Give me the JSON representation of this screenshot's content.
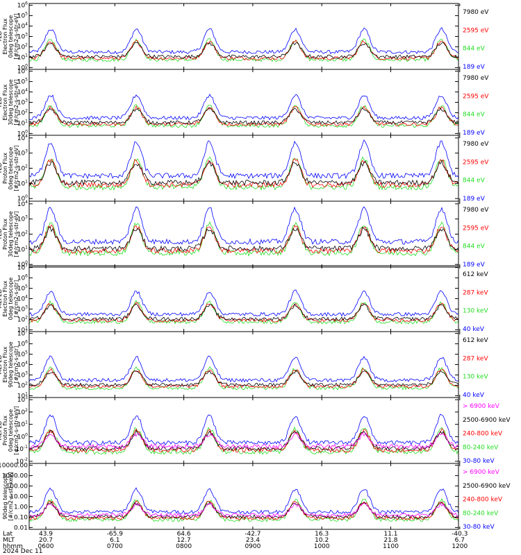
{
  "colors": {
    "black": "#000000",
    "red": "#ff0000",
    "green": "#22dd22",
    "blue": "#0000ff",
    "magenta": "#ff00ff"
  },
  "chart_data": {
    "type": "line",
    "x_axis": {
      "rows": [
        {
          "label": "Lat",
          "ticks": [
            "43.9",
            "-65.9",
            "64.6",
            "-42.7",
            "16.3",
            "11.1",
            "-40.3"
          ]
        },
        {
          "label": "MLT",
          "ticks": [
            "20.7",
            "6.1",
            "12.7",
            "23.4",
            "10.2",
            "21.8",
            "6.7"
          ]
        },
        {
          "label": "hhmm",
          "ticks": [
            "0600",
            "0700",
            "0800",
            "0900",
            "1000",
            "1100",
            "1200"
          ]
        }
      ],
      "date": "2024 Dec 11"
    },
    "panels": [
      {
        "ylabel": [
          "TED",
          "Electron Flux",
          "0deg telescope",
          "[#/cm2-s-str-eV]"
        ],
        "yscale": "log",
        "yticks": [
          "10^0",
          "10^1",
          "10^2",
          "10^3",
          "10^4",
          "10^5",
          "10^6"
        ],
        "legend": [
          {
            "text": "7980 eV",
            "color": "black"
          },
          {
            "text": "2595 eV",
            "color": "red"
          },
          {
            "text": "844 eV",
            "color": "green"
          },
          {
            "text": "189 eV",
            "color": "blue"
          }
        ]
      },
      {
        "ylabel": [
          "TED",
          "Electron Flux",
          "30deg telescope",
          "[#/cm2-s-str-eV]"
        ],
        "yscale": "log",
        "yticks": [
          "10^0",
          "10^1",
          "10^2",
          "10^3",
          "10^4",
          "10^5",
          "10^6"
        ],
        "legend": [
          {
            "text": "7980 eV",
            "color": "black"
          },
          {
            "text": "2595 eV",
            "color": "red"
          },
          {
            "text": "844 eV",
            "color": "green"
          },
          {
            "text": "189 eV",
            "color": "blue"
          }
        ]
      },
      {
        "ylabel": [
          "TED",
          "Proton Flux",
          "0deg telescope",
          "[#/cm2-s-str-eV]"
        ],
        "yscale": "log",
        "yticks": [
          "10^0",
          "10^1",
          "10^2",
          "10^3",
          "10^4"
        ],
        "legend": [
          {
            "text": "7980 eV",
            "color": "black"
          },
          {
            "text": "2595 eV",
            "color": "red"
          },
          {
            "text": "844 eV",
            "color": "green"
          },
          {
            "text": "189 eV",
            "color": "blue"
          }
        ]
      },
      {
        "ylabel": [
          "TED",
          "Proton Flux",
          "30deg telescope",
          "[#/cm2-s-str-eV]"
        ],
        "yscale": "log",
        "yticks": [
          "10^0",
          "10^1",
          "10^2",
          "10^3",
          "10^4"
        ],
        "legend": [
          {
            "text": "7980 eV",
            "color": "black"
          },
          {
            "text": "2595 eV",
            "color": "red"
          },
          {
            "text": "844 eV",
            "color": "green"
          },
          {
            "text": "189 eV",
            "color": "blue"
          }
        ]
      },
      {
        "ylabel": [
          "MEPED",
          "Electron Flux",
          "0deg telescope",
          "[#/cm2-s-str]"
        ],
        "yscale": "log",
        "yticks": [
          "10^1",
          "10^2",
          "10^3",
          "10^4",
          "10^5",
          "10^6",
          "10^7"
        ],
        "legend": [
          {
            "text": "612 keV",
            "color": "black"
          },
          {
            "text": "287 keV",
            "color": "red"
          },
          {
            "text": "130 keV",
            "color": "green"
          },
          {
            "text": "40 keV",
            "color": "blue"
          }
        ]
      },
      {
        "ylabel": [
          "MEPED",
          "Electron Flux",
          "90deg telescope",
          "[#/cm2-s-str]"
        ],
        "yscale": "log",
        "yticks": [
          "10^1",
          "10^2",
          "10^3",
          "10^4",
          "10^5",
          "10^6",
          "10^7"
        ],
        "legend": [
          {
            "text": "612 keV",
            "color": "black"
          },
          {
            "text": "287 keV",
            "color": "red"
          },
          {
            "text": "130 keV",
            "color": "green"
          },
          {
            "text": "40 keV",
            "color": "blue"
          }
        ]
      },
      {
        "ylabel": [
          "MEPED",
          "Proton flux",
          "0deg telescope",
          "[#/cm2-s-str-keV]"
        ],
        "yscale": "log",
        "yticks": [
          "10^-2",
          "10^-1",
          "10^0",
          "10^1",
          "10^2",
          "10^3"
        ],
        "legend": [
          {
            "text": "> 6900 keV",
            "color": "magenta"
          },
          {
            "text": "2500-6900 keV",
            "color": "black"
          },
          {
            "text": "240-800 keV",
            "color": "red"
          },
          {
            "text": "80-240 keV",
            "color": "green"
          },
          {
            "text": "30-80 keV",
            "color": "blue"
          }
        ]
      },
      {
        "ylabel": [
          "90deg telescope",
          "[#/cm2-s-str-keV]"
        ],
        "yscale": "log",
        "yticks": [
          "0.01",
          "0.10",
          "1.00",
          "10.00",
          "100.00",
          "1000.00",
          "10000.00"
        ],
        "legend": [
          {
            "text": "> 6900 keV",
            "color": "magenta"
          },
          {
            "text": "2500-6900 keV",
            "color": "black"
          },
          {
            "text": "240-800 keV",
            "color": "red"
          },
          {
            "text": "80-240 keV",
            "color": "green"
          },
          {
            "text": "30-80 keV",
            "color": "blue"
          }
        ]
      }
    ]
  }
}
